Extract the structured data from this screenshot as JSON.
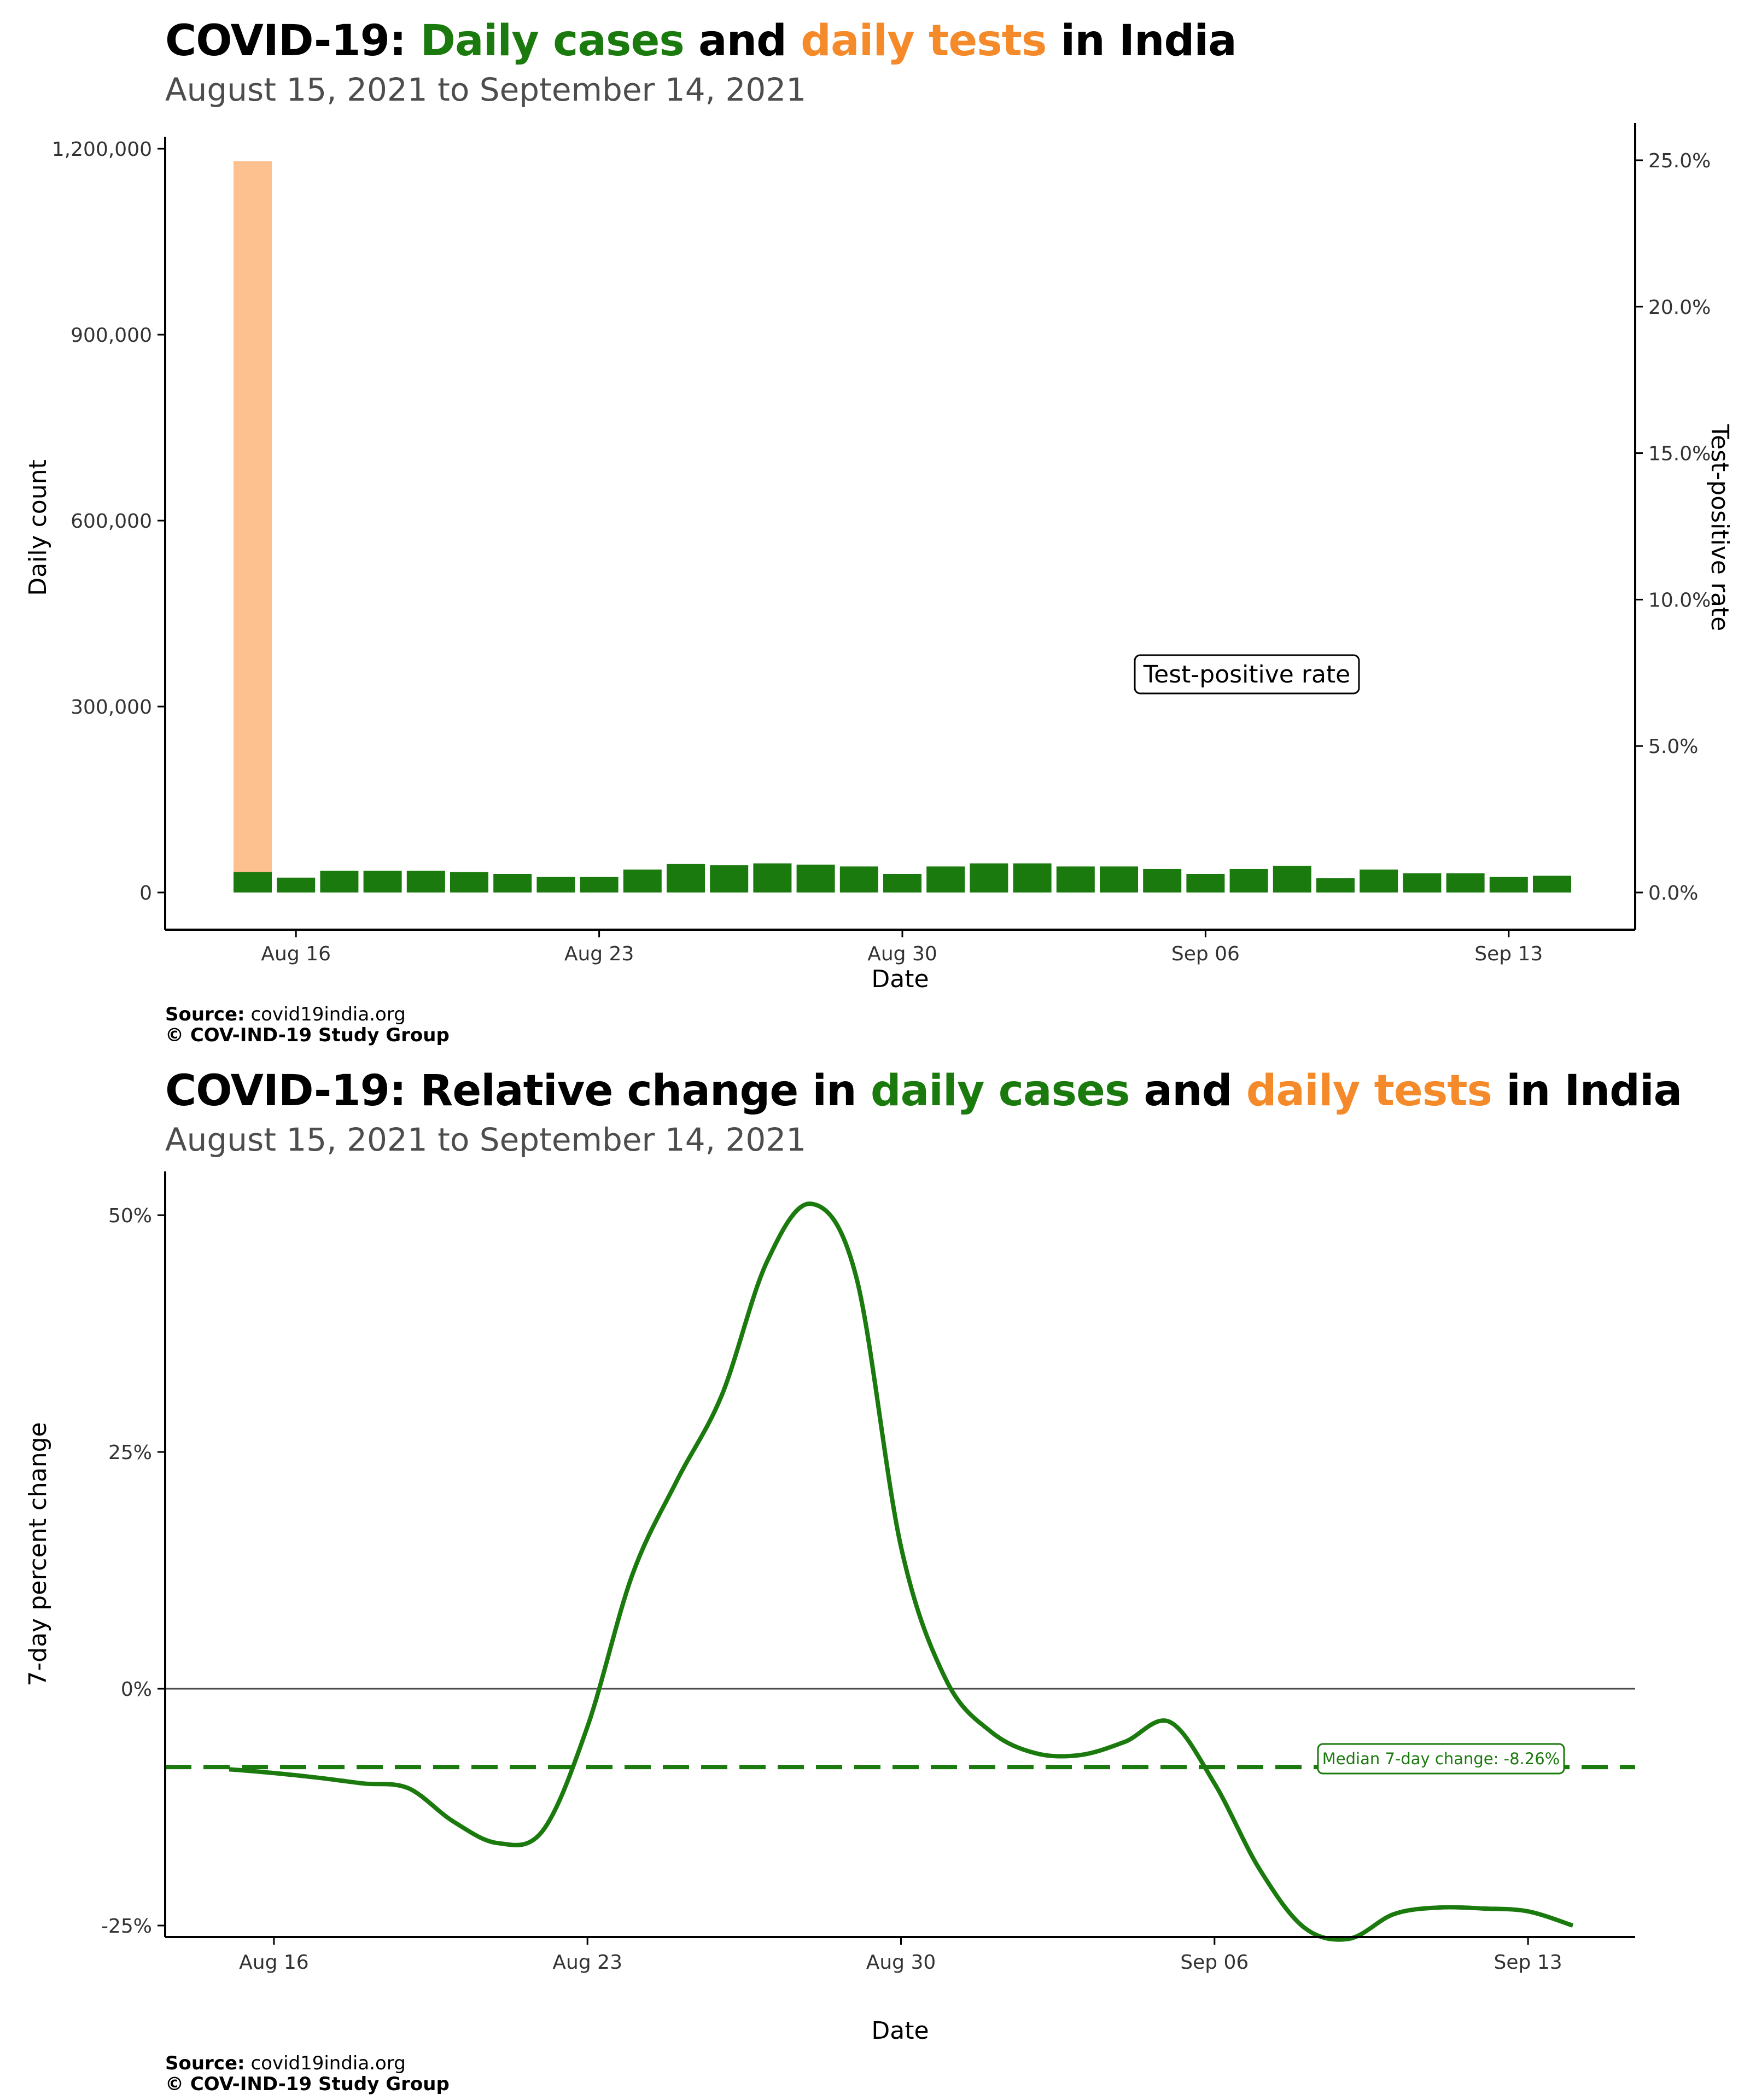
{
  "top": {
    "title_prefix": "COVID-19: ",
    "title_cases": "Daily cases",
    "title_mid": " and ",
    "title_tests": "daily tests",
    "title_suffix": " in India",
    "subtitle": "August 15, 2021 to September 14, 2021",
    "source_label": "Source:",
    "source_value": " covid19india.org",
    "copyright": "© COV-IND-19 Study Group"
  },
  "bottom": {
    "title_prefix": "COVID-19: Relative change in ",
    "title_cases": "daily cases",
    "title_mid": " and ",
    "title_tests": "daily tests",
    "title_suffix": " in India",
    "subtitle": "August 15, 2021 to September 14, 2021",
    "source_label": "Source:",
    "source_value": " covid19india.org",
    "copyright": "© COV-IND-19 Study Group"
  },
  "colors": {
    "cases": "#1b7a0d",
    "tests": "#fdc190",
    "tests_text": "#f58a2a",
    "zero_line": "#4d4d4d"
  },
  "chart_data": [
    {
      "type": "bar",
      "xlabel": "Date",
      "ylabel": "Daily count",
      "y2label": "Test-positive rate",
      "ylim": [
        0,
        1250000
      ],
      "y2lim": [
        0,
        26
      ],
      "yticks": [
        0,
        300000,
        600000,
        900000,
        1200000
      ],
      "yticklabels": [
        "0",
        "300,000",
        "600,000",
        "900,000",
        "1,200,000"
      ],
      "y2ticks": [
        0,
        5,
        10,
        15,
        20,
        25
      ],
      "y2ticklabels": [
        "0.0%",
        "5.0%",
        "10.0%",
        "15.0%",
        "20.0%",
        "25.0%"
      ],
      "xticks": [
        "2021-08-16",
        "2021-08-23",
        "2021-08-30",
        "2021-09-06",
        "2021-09-13"
      ],
      "xticklabels": [
        "Aug 16",
        "Aug 23",
        "Aug 30",
        "Sep 06",
        "Sep 13"
      ],
      "annotation": "Test-positive rate",
      "dates": [
        "2021-08-15",
        "2021-08-16",
        "2021-08-17",
        "2021-08-18",
        "2021-08-19",
        "2021-08-20",
        "2021-08-21",
        "2021-08-22",
        "2021-08-23",
        "2021-08-24",
        "2021-08-25",
        "2021-08-26",
        "2021-08-27",
        "2021-08-28",
        "2021-08-29",
        "2021-08-30",
        "2021-08-31",
        "2021-09-01",
        "2021-09-02",
        "2021-09-03",
        "2021-09-04",
        "2021-09-05",
        "2021-09-06",
        "2021-09-07",
        "2021-09-08",
        "2021-09-09",
        "2021-09-10",
        "2021-09-11",
        "2021-09-12",
        "2021-09-13",
        "2021-09-14"
      ],
      "series": [
        {
          "name": "daily tests",
          "values": [
            1180000,
            0,
            0,
            0,
            0,
            0,
            0,
            0,
            0,
            0,
            0,
            0,
            0,
            0,
            0,
            0,
            0,
            0,
            0,
            0,
            0,
            0,
            0,
            0,
            0,
            0,
            0,
            0,
            0,
            0,
            0
          ]
        },
        {
          "name": "daily cases",
          "values": [
            33000,
            24000,
            35000,
            35000,
            35000,
            33000,
            30000,
            25000,
            25000,
            37000,
            46000,
            44000,
            47000,
            45000,
            42000,
            30000,
            42000,
            47000,
            47000,
            42000,
            42000,
            38000,
            30000,
            38000,
            43000,
            23000,
            37000,
            31000,
            31000,
            25000,
            27000
          ]
        }
      ]
    },
    {
      "type": "line",
      "xlabel": "Date",
      "ylabel": "7-day percent change",
      "ylim": [
        -30,
        55
      ],
      "yticks": [
        -25,
        0,
        25,
        50
      ],
      "yticklabels": [
        "-25%",
        "0%",
        "25%",
        "50%"
      ],
      "xticks": [
        "2021-08-16",
        "2021-08-23",
        "2021-08-30",
        "2021-09-06",
        "2021-09-13"
      ],
      "xticklabels": [
        "Aug 16",
        "Aug 23",
        "Aug 30",
        "Sep 06",
        "Sep 13"
      ],
      "median_label": "Median 7-day change: -8.26%",
      "median": -8.26,
      "series": [
        {
          "name": "daily cases",
          "x": [
            "2021-08-15",
            "2021-08-16",
            "2021-08-17",
            "2021-08-18",
            "2021-08-19",
            "2021-08-20",
            "2021-08-21",
            "2021-08-22",
            "2021-08-23",
            "2021-08-24",
            "2021-08-25",
            "2021-08-26",
            "2021-08-27",
            "2021-08-28",
            "2021-08-29",
            "2021-08-30",
            "2021-08-31",
            "2021-09-01",
            "2021-09-02",
            "2021-09-03",
            "2021-09-04",
            "2021-09-05",
            "2021-09-06",
            "2021-09-07",
            "2021-09-08",
            "2021-09-09",
            "2021-09-10",
            "2021-09-11",
            "2021-09-12",
            "2021-09-13",
            "2021-09-14"
          ],
          "values": [
            -8.5,
            -8.9,
            -9.4,
            -10.0,
            -10.5,
            -14.0,
            -16.3,
            -15.0,
            -4.0,
            12.0,
            22.0,
            31.0,
            45.0,
            51.2,
            43.5,
            15.0,
            1.0,
            -4.5,
            -6.8,
            -7.0,
            -5.6,
            -3.5,
            -10.0,
            -19.0,
            -25.2,
            -26.4,
            -23.8,
            -23.1,
            -23.2,
            -23.5,
            -25.0
          ]
        }
      ]
    }
  ]
}
